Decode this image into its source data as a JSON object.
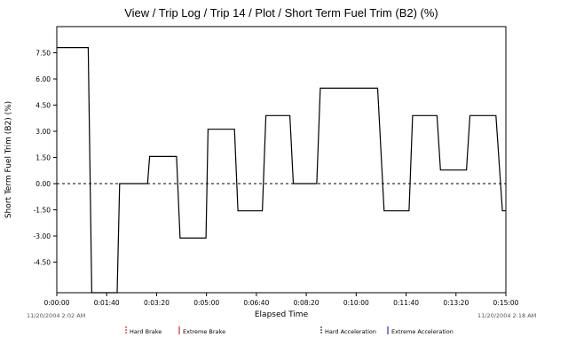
{
  "chart_data": {
    "type": "line",
    "title": "View / Trip Log / Trip 14 / Plot / Short Term Fuel Trim (B2) (%)",
    "xlabel": "Elapsed Time",
    "ylabel": "Short Term Fuel Trim (B2) (%)",
    "x_range_seconds": [
      0,
      900
    ],
    "ylim": [
      -6.25,
      9.0
    ],
    "y_ticks": [
      "7.50",
      "6.00",
      "4.50",
      "3.00",
      "1.50",
      "0.00",
      "-1.50",
      "-3.00",
      "-4.50"
    ],
    "y_tick_values": [
      7.5,
      6.0,
      4.5,
      3.0,
      1.5,
      0.0,
      -1.5,
      -3.0,
      -4.5
    ],
    "x_ticks": [
      "0:00:00",
      "0:01:40",
      "0:03:20",
      "0:05:00",
      "0:06:40",
      "0:08:20",
      "0:10:00",
      "0:11:40",
      "0:13:20",
      "0:15:00"
    ],
    "x_tick_values": [
      0,
      100,
      200,
      300,
      400,
      500,
      600,
      700,
      800,
      900
    ],
    "start_timestamp": "11/20/2004 2:02 AM",
    "end_timestamp": "11/20/2004 2:18 AM",
    "grid": false,
    "series": [
      {
        "color": "#000000",
        "points": [
          [
            0,
            7.8
          ],
          [
            63,
            7.8
          ],
          [
            70,
            -6.25
          ],
          [
            121,
            -6.25
          ],
          [
            126,
            0.0
          ],
          [
            182,
            0.0
          ],
          [
            186,
            1.56
          ],
          [
            240,
            1.56
          ],
          [
            247,
            -3.12
          ],
          [
            299,
            -3.12
          ],
          [
            303,
            3.12
          ],
          [
            356,
            3.12
          ],
          [
            363,
            -1.56
          ],
          [
            412,
            -1.56
          ],
          [
            419,
            3.9
          ],
          [
            467,
            3.9
          ],
          [
            474,
            0.0
          ],
          [
            521,
            0.0
          ],
          [
            528,
            5.47
          ],
          [
            643,
            5.47
          ],
          [
            656,
            -1.56
          ],
          [
            706,
            -1.56
          ],
          [
            713,
            3.9
          ],
          [
            762,
            3.9
          ],
          [
            769,
            0.78
          ],
          [
            821,
            0.78
          ],
          [
            828,
            3.9
          ],
          [
            880,
            3.9
          ],
          [
            893,
            -1.56
          ],
          [
            900,
            -1.56
          ]
        ]
      }
    ],
    "reference_line": {
      "y": 0.0,
      "style": "dashed"
    },
    "legend": [
      {
        "label": "Hard Brake",
        "color": "#cc0000"
      },
      {
        "label": "Extreme Brake",
        "color": "#cc0000"
      },
      {
        "label": "Hard Acceleration",
        "color": "#000000"
      },
      {
        "label": "Extreme Acceleration",
        "color": "#0000cc"
      }
    ]
  }
}
